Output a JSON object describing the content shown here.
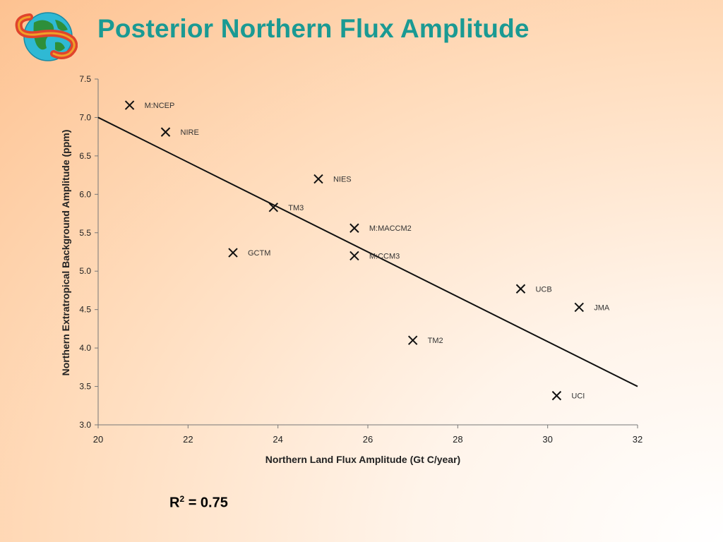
{
  "slide": {
    "title": "Posterior Northern Flux Amplitude",
    "logo_icon": "globe-logo-icon",
    "r2_label": "R",
    "r2_sup": "2",
    "r2_value": " = 0.75",
    "title_color": "#1a9a93"
  },
  "chart_data": {
    "type": "scatter",
    "title": "",
    "xlabel": "Northern Land Flux Amplitude (Gt C/year)",
    "ylabel": "Northern Extratropical Background Amplitude (ppm)",
    "xlim": [
      20,
      32
    ],
    "ylim": [
      3.0,
      7.5
    ],
    "x_ticks": [
      "20",
      "22",
      "24",
      "26",
      "28",
      "30",
      "32"
    ],
    "y_ticks": [
      "3.0",
      "3.5",
      "4.0",
      "4.5",
      "5.0",
      "5.5",
      "6.0",
      "6.5",
      "7.0",
      "7.5"
    ],
    "grid": false,
    "marker": "x",
    "points": [
      {
        "label": "M:NCEP",
        "x": 20.7,
        "y": 7.16
      },
      {
        "label": "NIRE",
        "x": 21.5,
        "y": 6.81
      },
      {
        "label": "NIES",
        "x": 24.9,
        "y": 6.2
      },
      {
        "label": "TM3",
        "x": 23.9,
        "y": 5.83
      },
      {
        "label": "M:MACCM2",
        "x": 25.7,
        "y": 5.56
      },
      {
        "label": "GCTM",
        "x": 23.0,
        "y": 5.24
      },
      {
        "label": "M:CCM3",
        "x": 25.7,
        "y": 5.2
      },
      {
        "label": "UCB",
        "x": 29.4,
        "y": 4.77
      },
      {
        "label": "JMA",
        "x": 30.7,
        "y": 4.53
      },
      {
        "label": "TM2",
        "x": 27.0,
        "y": 4.1
      },
      {
        "label": "UCI",
        "x": 30.2,
        "y": 3.38
      }
    ],
    "trend_line": {
      "x": [
        20,
        32
      ],
      "y": [
        7.0,
        3.5
      ]
    }
  }
}
